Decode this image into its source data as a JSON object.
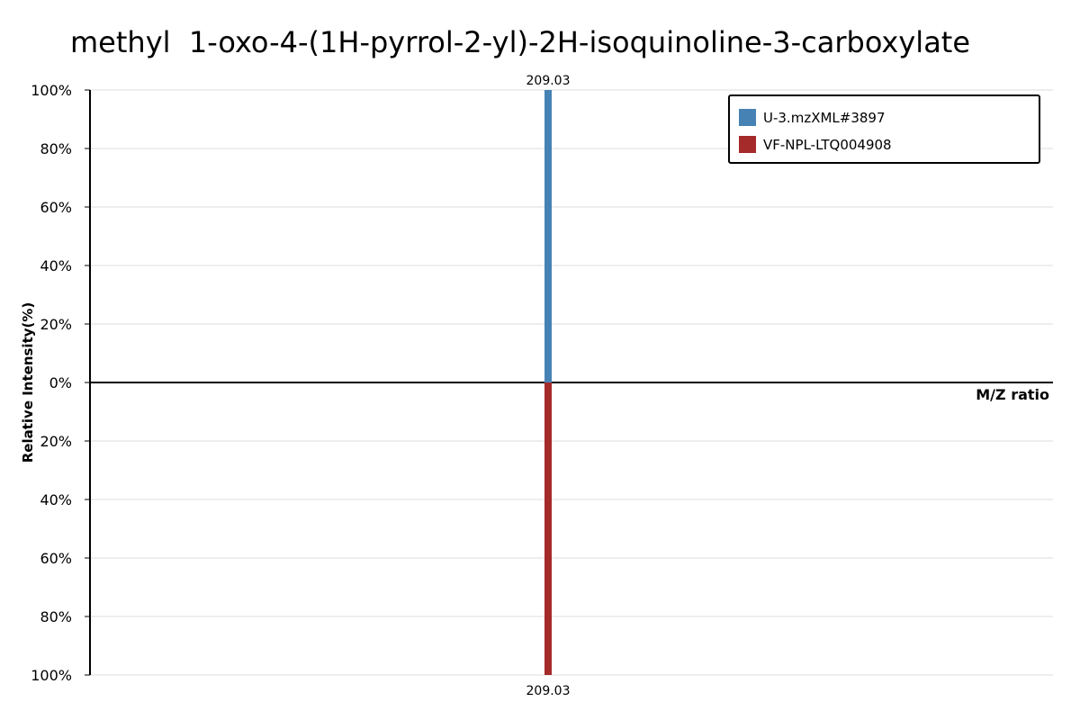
{
  "chart_data": {
    "type": "bar",
    "title": "methyl  1-oxo-4-(1H-pyrrol-2-yl)-2H-isoquinoline-3-carboxylate",
    "xlabel": "M/Z ratio",
    "ylabel": "Relative Intensity(%)",
    "yticks_top": [
      "100%",
      "80%",
      "60%",
      "40%",
      "20%",
      "0%"
    ],
    "yticks_bottom": [
      "20%",
      "40%",
      "60%",
      "80%",
      "100%"
    ],
    "ylim": [
      -100,
      100
    ],
    "grid": true,
    "legend_placement": "top-right",
    "series": [
      {
        "name": "U-3.mzXML#3897",
        "color": "#4682b4",
        "direction": "up",
        "peaks": [
          {
            "mz": 209.03,
            "intensity": 100,
            "label": "209.03"
          }
        ]
      },
      {
        "name": "VF-NPL-LTQ004908",
        "color": "#a52a2a",
        "direction": "down",
        "peaks": [
          {
            "mz": 209.03,
            "intensity": 100,
            "label": "209.03"
          }
        ]
      }
    ]
  }
}
